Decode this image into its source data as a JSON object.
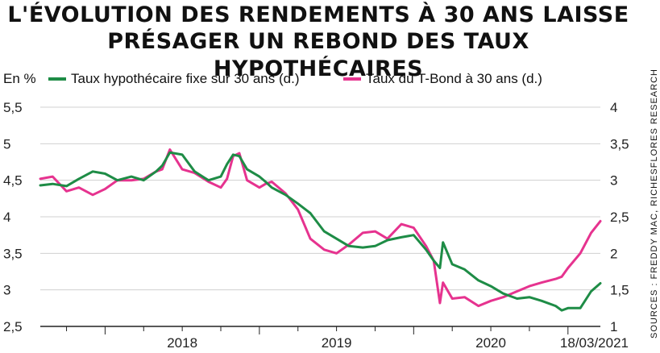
{
  "title_line1": "L'ÉVOLUTION DES RENDEMENTS À 30 ANS LAISSE",
  "title_line2": "PRÉSAGER UN REBOND DES TAUX HYPOTHÉCAIRES",
  "source": "SOURCES : FREDDY MAC, RICHESFLORES RESEARCH",
  "colors": {
    "mortgage": "#1e8c46",
    "tbond": "#e6338f"
  },
  "chart_data": {
    "type": "line",
    "title": "L'ÉVOLUTION DES RENDEMENTS À 30 ANS LAISSE PRÉSAGER UN REBOND DES TAUX HYPOTHÉCAIRES",
    "ylabel": "En %",
    "y_left": {
      "ticks": [
        "5,5",
        "5",
        "4,5",
        "4",
        "3,5",
        "3",
        "2,5"
      ],
      "range": [
        2.5,
        5.5
      ]
    },
    "y_right": {
      "ticks": [
        "4",
        "3,5",
        "3",
        "2,5",
        "2",
        "1,5",
        "1"
      ],
      "range": [
        1,
        4
      ]
    },
    "x_labels": [
      "2018",
      "2019",
      "2020",
      "18/03/2021"
    ],
    "x_range": [
      2017.58,
      2021.21
    ],
    "grid": "horizontal",
    "series": [
      {
        "name": "Taux hypothécaire fixe sur 30 ans  (d.)",
        "axis": "left",
        "x": [
          2017.58,
          2017.66,
          2017.75,
          2017.83,
          2017.92,
          2018.0,
          2018.08,
          2018.17,
          2018.25,
          2018.33,
          2018.37,
          2018.42,
          2018.5,
          2018.58,
          2018.67,
          2018.75,
          2018.79,
          2018.83,
          2018.87,
          2018.92,
          2019.0,
          2019.04,
          2019.08,
          2019.17,
          2019.25,
          2019.33,
          2019.42,
          2019.5,
          2019.58,
          2019.67,
          2019.75,
          2019.83,
          2019.92,
          2020.0,
          2020.08,
          2020.13,
          2020.17,
          2020.19,
          2020.25,
          2020.33,
          2020.42,
          2020.5,
          2020.58,
          2020.67,
          2020.75,
          2020.83,
          2020.92,
          2020.96,
          2021.0,
          2021.08,
          2021.15,
          2021.21
        ],
        "values": [
          4.43,
          4.45,
          4.42,
          4.52,
          4.62,
          4.59,
          4.5,
          4.55,
          4.5,
          4.62,
          4.7,
          4.88,
          4.85,
          4.62,
          4.5,
          4.55,
          4.72,
          4.85,
          4.83,
          4.65,
          4.55,
          4.48,
          4.4,
          4.3,
          4.18,
          4.05,
          3.8,
          3.7,
          3.6,
          3.58,
          3.6,
          3.68,
          3.72,
          3.75,
          3.55,
          3.4,
          3.3,
          3.65,
          3.35,
          3.28,
          3.13,
          3.05,
          2.95,
          2.88,
          2.9,
          2.85,
          2.78,
          2.72,
          2.75,
          2.75,
          2.98,
          3.09
        ]
      },
      {
        "name": "Taux du T-Bond à 30 ans (d.)",
        "axis": "right",
        "x": [
          2017.58,
          2017.66,
          2017.75,
          2017.83,
          2017.92,
          2018.0,
          2018.08,
          2018.17,
          2018.25,
          2018.33,
          2018.37,
          2018.42,
          2018.5,
          2018.58,
          2018.67,
          2018.75,
          2018.79,
          2018.83,
          2018.87,
          2018.92,
          2019.0,
          2019.04,
          2019.08,
          2019.17,
          2019.25,
          2019.33,
          2019.42,
          2019.5,
          2019.58,
          2019.67,
          2019.75,
          2019.83,
          2019.92,
          2020.0,
          2020.08,
          2020.13,
          2020.17,
          2020.19,
          2020.25,
          2020.33,
          2020.42,
          2020.5,
          2020.58,
          2020.67,
          2020.75,
          2020.83,
          2020.92,
          2020.96,
          2021.0,
          2021.08,
          2021.15,
          2021.21
        ],
        "values": [
          3.02,
          3.05,
          2.85,
          2.9,
          2.8,
          2.88,
          3.0,
          3.0,
          3.02,
          3.12,
          3.15,
          3.42,
          3.15,
          3.1,
          2.98,
          2.9,
          3.02,
          3.33,
          3.37,
          3.0,
          2.9,
          2.95,
          2.98,
          2.82,
          2.6,
          2.2,
          2.05,
          2.0,
          2.12,
          2.28,
          2.3,
          2.2,
          2.4,
          2.35,
          2.1,
          1.9,
          1.32,
          1.6,
          1.38,
          1.4,
          1.28,
          1.35,
          1.4,
          1.48,
          1.55,
          1.6,
          1.65,
          1.68,
          1.8,
          2.0,
          2.28,
          2.44
        ]
      }
    ]
  }
}
